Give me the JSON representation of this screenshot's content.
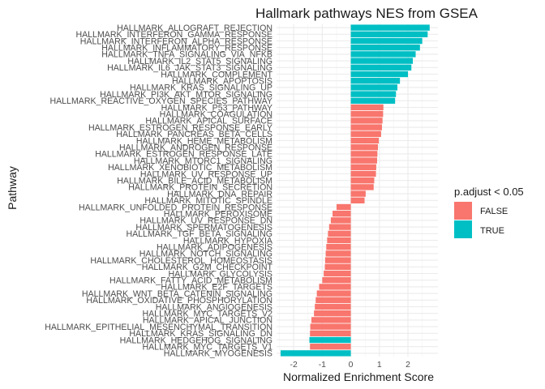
{
  "chart_data": {
    "type": "bar",
    "orientation": "horizontal",
    "title": "Hallmark pathways NES from GSEA",
    "xlabel": "Normalized Enrichment Score",
    "ylabel": "Pathway",
    "xlim": [
      -2.6,
      3.05
    ],
    "xticks": [
      -2,
      -1,
      0,
      1,
      2
    ],
    "xtick_labels": [
      "-2",
      "-1",
      "0",
      "1",
      "2"
    ],
    "grid": true,
    "legend": {
      "title": "p.adjust < 0.05",
      "position": "right",
      "entries": [
        {
          "label": "FALSE",
          "color": "#F8766D"
        },
        {
          "label": "TRUE",
          "color": "#00BFC4"
        }
      ]
    },
    "colors": {
      "FALSE": "#F8766D",
      "TRUE": "#00BFC4"
    },
    "categories": [
      "HALLMARK_ALLOGRAFT_REJECTION",
      "HALLMARK_INTERFERON_GAMMA_RESPONSE",
      "HALLMARK_INTERFERON_ALPHA_RESPONSE",
      "HALLMARK_INFLAMMATORY_RESPONSE",
      "HALLMARK_TNFA_SIGNALING_VIA_NFKB",
      "HALLMARK_IL2_STAT5_SIGNALING",
      "HALLMARK_IL6_JAK_STAT3_SIGNALING",
      "HALLMARK_COMPLEMENT",
      "HALLMARK_APOPTOSIS",
      "HALLMARK_KRAS_SIGNALING_UP",
      "HALLMARK_PI3K_AKT_MTOR_SIGNALING",
      "HALLMARK_REACTIVE_OXYGEN_SPECIES_PATHWAY",
      "HALLMARK_P53_PATHWAY",
      "HALLMARK_COAGULATION",
      "HALLMARK_APICAL_SURFACE",
      "HALLMARK_ESTROGEN_RESPONSE_EARLY",
      "HALLMARK_PANCREAS_BETA_CELLS",
      "HALLMARK_HEME_METABOLISM",
      "HALLMARK_ANDROGEN_RESPONSE",
      "HALLMARK_ESTROGEN_RESPONSE_LATE",
      "HALLMARK_MTORC1_SIGNALING",
      "HALLMARK_XENOBIOTIC_METABOLISM",
      "HALLMARK_UV_RESPONSE_UP",
      "HALLMARK_BILE_ACID_METABOLISM",
      "HALLMARK_PROTEIN_SECRETION",
      "HALLMARK_DNA_REPAIR",
      "HALLMARK_MITOTIC_SPINDLE",
      "HALLMARK_UNFOLDED_PROTEIN_RESPONSE",
      "HALLMARK_PEROXISOME",
      "HALLMARK_UV_RESPONSE_DN",
      "HALLMARK_SPERMATOGENESIS",
      "HALLMARK_TGF_BETA_SIGNALING",
      "HALLMARK_HYPOXIA",
      "HALLMARK_ADIPOGENESIS",
      "HALLMARK_NOTCH_SIGNALING",
      "HALLMARK_CHOLESTEROL_HOMEOSTASIS",
      "HALLMARK_G2M_CHECKPOINT",
      "HALLMARK_GLYCOLYSIS",
      "HALLMARK_FATTY_ACID_METABOLISM",
      "HALLMARK_E2F_TARGETS",
      "HALLMARK_WNT_BETA_CATENIN_SIGNALING",
      "HALLMARK_OXIDATIVE_PHOSPHORYLATION",
      "HALLMARK_ANGIOGENESIS",
      "HALLMARK_MYC_TARGETS_V2",
      "HALLMARK_APICAL_JUNCTION",
      "HALLMARK_EPITHELIAL_MESENCHYMAL_TRANSITION",
      "HALLMARK_KRAS_SIGNALING_DN",
      "HALLMARK_HEDGEHOG_SIGNALING",
      "HALLMARK_MYC_TARGETS_V1",
      "HALLMARK_MYOGENESIS"
    ],
    "values": [
      2.76,
      2.69,
      2.5,
      2.42,
      2.27,
      2.17,
      2.12,
      2.0,
      1.72,
      1.63,
      1.58,
      1.55,
      1.14,
      1.13,
      1.11,
      1.09,
      1.06,
      0.98,
      0.95,
      0.93,
      0.92,
      0.89,
      0.88,
      0.82,
      0.8,
      0.52,
      0.48,
      -0.5,
      -0.64,
      -0.7,
      -0.76,
      -0.8,
      -0.83,
      -0.86,
      -0.88,
      -0.9,
      -0.91,
      -0.95,
      -1.0,
      -1.11,
      -1.19,
      -1.23,
      -1.26,
      -1.29,
      -1.38,
      -1.42,
      -1.43,
      -1.45,
      -1.43,
      -2.46
    ],
    "significant": [
      true,
      true,
      true,
      true,
      true,
      true,
      true,
      true,
      true,
      true,
      true,
      true,
      false,
      false,
      false,
      false,
      false,
      false,
      false,
      false,
      false,
      false,
      false,
      false,
      false,
      false,
      false,
      false,
      false,
      false,
      false,
      false,
      false,
      false,
      false,
      false,
      false,
      false,
      false,
      false,
      false,
      false,
      false,
      false,
      false,
      false,
      false,
      true,
      false,
      true
    ]
  }
}
